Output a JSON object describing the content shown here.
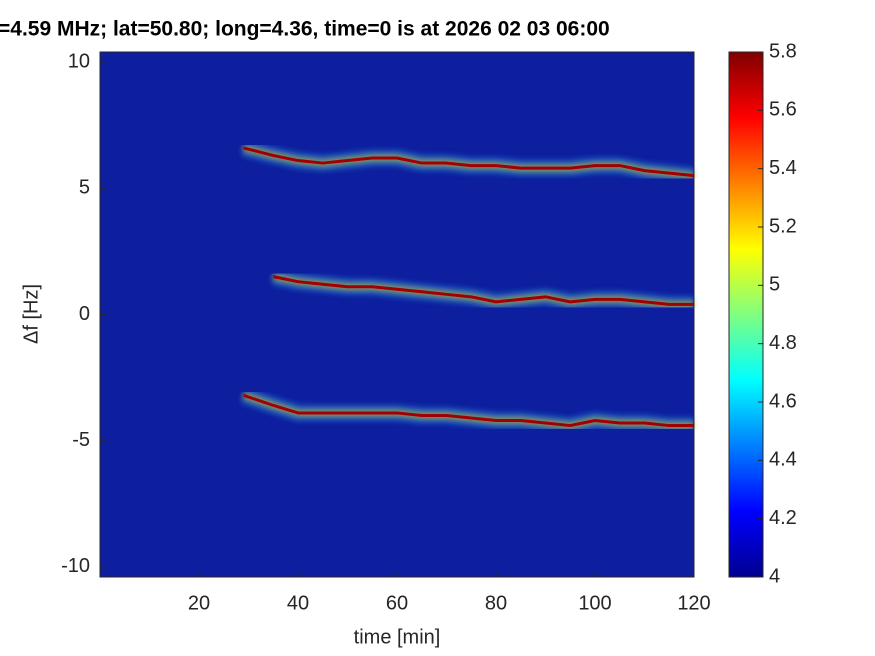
{
  "chart_data": {
    "type": "spectrogram",
    "title": "=4.59 MHz;  lat=50.80; long=4.36, time=0 is at 2026 02 03 06:00",
    "x_label": "time [min]",
    "y_label": "Δf [Hz]",
    "background": "#0d1e9e",
    "x": [
      29,
      35,
      40,
      45,
      50,
      55,
      60,
      65,
      70,
      75,
      80,
      85,
      90,
      95,
      100,
      105,
      110,
      115,
      120
    ],
    "series": [
      {
        "color": "#a00000",
        "values": [
          6.6,
          6.3,
          6.1,
          6.0,
          6.1,
          6.2,
          6.2,
          6.0,
          6.0,
          5.9,
          5.9,
          5.8,
          5.8,
          5.8,
          5.9,
          5.9,
          5.7,
          5.6,
          5.5
        ]
      },
      {
        "color": "#a00000",
        "values": [
          null,
          1.5,
          1.3,
          1.2,
          1.1,
          1.1,
          1.0,
          0.9,
          0.8,
          0.7,
          0.5,
          0.6,
          0.7,
          0.5,
          0.6,
          0.6,
          0.5,
          0.4,
          0.4
        ]
      },
      {
        "color": "#a00000",
        "values": [
          -3.2,
          -3.6,
          -3.9,
          -3.9,
          -3.9,
          -3.9,
          -3.9,
          -4.0,
          -4.0,
          -4.1,
          -4.2,
          -4.2,
          -4.3,
          -4.4,
          -4.2,
          -4.3,
          -4.3,
          -4.4,
          -4.4
        ]
      }
    ],
    "xlim": [
      0,
      120
    ],
    "xticks": [
      20,
      40,
      60,
      80,
      100,
      120
    ],
    "ylim": [
      -10.4,
      10.4
    ],
    "yticks": [
      -10,
      -5,
      0,
      5,
      10
    ],
    "clim": [
      4,
      5.8
    ],
    "cticks": [
      4,
      4.2,
      4.4,
      4.6,
      4.8,
      5,
      5.2,
      5.4,
      5.6,
      5.8
    ]
  }
}
